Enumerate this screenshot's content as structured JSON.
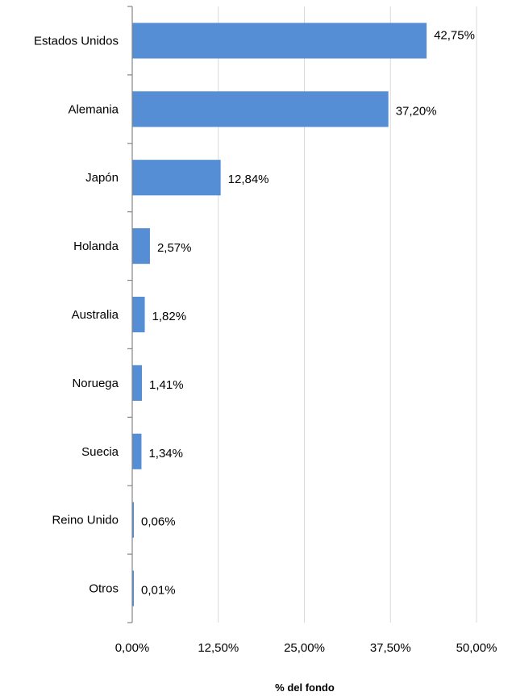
{
  "chart_data": {
    "type": "bar",
    "orientation": "horizontal",
    "categories": [
      "Estados Unidos",
      "Alemania",
      "Japón",
      "Holanda",
      "Australia",
      "Noruega",
      "Suecia",
      "Reino Unido",
      "Otros"
    ],
    "values": [
      42.75,
      37.2,
      12.84,
      2.57,
      1.82,
      1.41,
      1.34,
      0.06,
      0.01
    ],
    "data_labels": [
      "42,75%",
      "37,20%",
      "12,84%",
      "2,57%",
      "1,82%",
      "1,41%",
      "1,34%",
      "0,06%",
      "0,01%"
    ],
    "xlabel": "% del fondo",
    "ylabel": "",
    "xlim": [
      0,
      50
    ],
    "ticks": [
      0,
      12.5,
      25,
      37.5,
      50
    ],
    "tick_labels": [
      "0,00%",
      "12,50%",
      "25,00%",
      "37,50%",
      "50,00%"
    ],
    "grid": "vertical",
    "legend": "none",
    "bar_color": "#558ED5",
    "grid_color": "#D9D9D9",
    "axis_color": "#868686"
  }
}
